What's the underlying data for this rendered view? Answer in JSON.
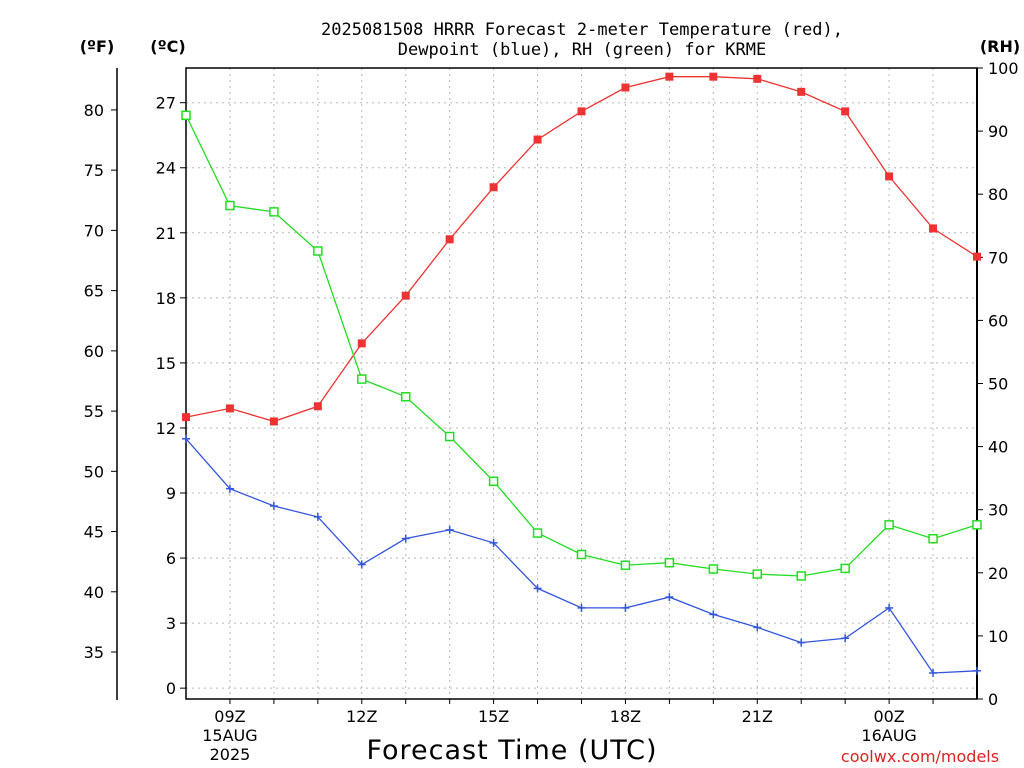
{
  "chart_data": {
    "type": "line",
    "title_line1": "2025081508 HRRR Forecast 2-meter Temperature (red),",
    "title_line2": "Dewpoint (blue), RH (green) for KRME",
    "xlabel": "Forecast Time (UTC)",
    "unit_f": "(ºF)",
    "unit_c": "(ºC)",
    "unit_rh": "(RH)",
    "credit": "coolwx.com/models",
    "x_hours": [
      8,
      9,
      10,
      11,
      12,
      13,
      14,
      15,
      16,
      17,
      18,
      19,
      20,
      21,
      22,
      23,
      24,
      25,
      26
    ],
    "xlim": [
      8,
      26
    ],
    "x_ticks": [
      {
        "hour": 9,
        "label": "09Z",
        "sub1": "15AUG",
        "sub2": "2025"
      },
      {
        "hour": 12,
        "label": "12Z"
      },
      {
        "hour": 15,
        "label": "15Z"
      },
      {
        "hour": 18,
        "label": "18Z"
      },
      {
        "hour": 21,
        "label": "21Z"
      },
      {
        "hour": 24,
        "label": "00Z",
        "sub1": "16AUG"
      }
    ],
    "x_grid_hours": [
      9,
      10,
      11,
      12,
      13,
      14,
      15,
      16,
      17,
      18,
      19,
      20,
      21,
      22,
      23,
      24,
      25
    ],
    "ylim_c": [
      -0.5,
      28.6
    ],
    "yticks_c": [
      "0",
      "3",
      "6",
      "9",
      "12",
      "15",
      "18",
      "21",
      "24",
      "27"
    ],
    "yticks_f": [
      "35",
      "40",
      "45",
      "50",
      "55",
      "60",
      "65",
      "70",
      "75",
      "80"
    ],
    "ylim_rh": [
      0,
      100
    ],
    "yticks_rh": [
      "0",
      "10",
      "20",
      "30",
      "40",
      "50",
      "60",
      "70",
      "80",
      "90",
      "100"
    ],
    "grid": true,
    "series": [
      {
        "name": "Temperature",
        "axis": "c",
        "color": "#ee3333",
        "marker": "filled-square",
        "values": [
          12.5,
          12.9,
          12.3,
          13.0,
          15.9,
          18.1,
          20.7,
          23.1,
          25.3,
          26.6,
          27.7,
          28.2,
          28.2,
          28.1,
          27.5,
          26.6,
          23.6,
          21.2,
          19.9
        ]
      },
      {
        "name": "Dewpoint",
        "axis": "c",
        "color": "#3355dd",
        "marker": "plus",
        "values": [
          11.5,
          9.2,
          8.4,
          7.9,
          5.7,
          6.9,
          7.3,
          6.7,
          4.6,
          3.7,
          3.7,
          4.2,
          3.4,
          2.8,
          2.1,
          2.3,
          3.7,
          0.7,
          0.8
        ]
      },
      {
        "name": "RH",
        "axis": "rh",
        "color": "#22dd22",
        "marker": "open-square",
        "values": [
          92.5,
          78.2,
          77.2,
          71.0,
          50.7,
          47.9,
          41.6,
          34.5,
          26.3,
          22.9,
          21.2,
          21.6,
          20.6,
          19.8,
          19.5,
          20.7,
          27.6,
          25.4,
          27.6
        ]
      }
    ]
  }
}
